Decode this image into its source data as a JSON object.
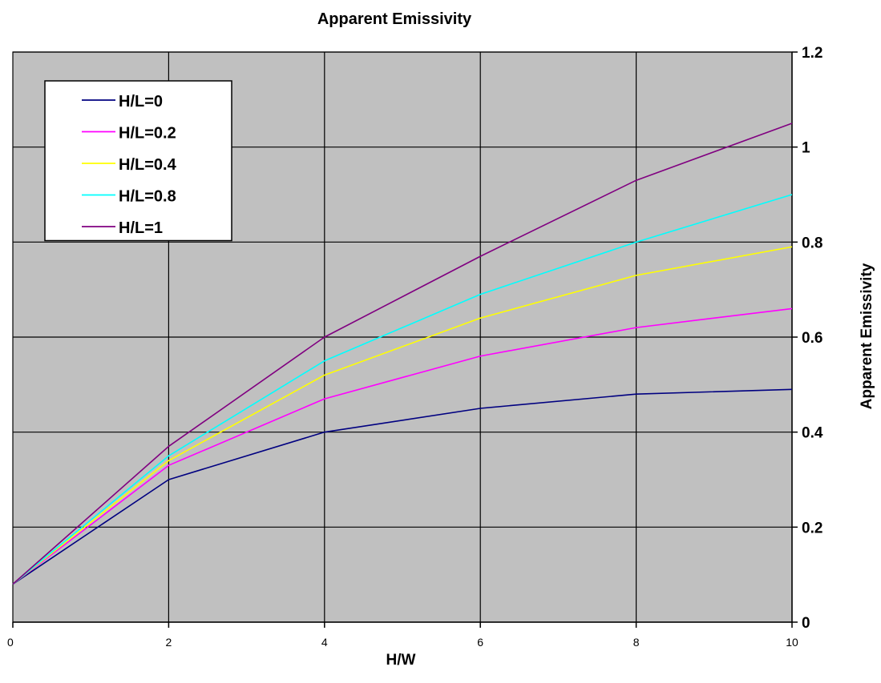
{
  "chart_data": {
    "type": "line",
    "title": "Apparent Emissivity",
    "xlabel": "H/W",
    "ylabel": "Apparent Emissivity",
    "x": [
      0,
      2,
      4,
      6,
      8,
      10
    ],
    "xlim": [
      0,
      10
    ],
    "ylim": [
      0,
      1.2
    ],
    "xticks": [
      "0",
      "2",
      "4",
      "6",
      "8",
      "10"
    ],
    "yticks": [
      "0",
      "0.2",
      "0.4",
      "0.6",
      "0.8",
      "1",
      "1.2"
    ],
    "grid": true,
    "y_axis_side": "right",
    "legend_position": "top-left",
    "plot_background": "#c0c0c0",
    "series": [
      {
        "name": "H/L=0",
        "color": "#000080",
        "values": [
          0.08,
          0.3,
          0.4,
          0.45,
          0.48,
          0.49
        ]
      },
      {
        "name": "H/L=0.2",
        "color": "#ff00ff",
        "values": [
          0.08,
          0.33,
          0.47,
          0.56,
          0.62,
          0.66
        ]
      },
      {
        "name": "H/L=0.4",
        "color": "#ffff00",
        "values": [
          0.08,
          0.34,
          0.52,
          0.64,
          0.73,
          0.79
        ]
      },
      {
        "name": "H/L=0.8",
        "color": "#00ffff",
        "values": [
          0.08,
          0.35,
          0.55,
          0.69,
          0.8,
          0.9
        ]
      },
      {
        "name": "H/L=1",
        "color": "#800080",
        "values": [
          0.08,
          0.37,
          0.6,
          0.77,
          0.93,
          1.05
        ]
      }
    ]
  }
}
